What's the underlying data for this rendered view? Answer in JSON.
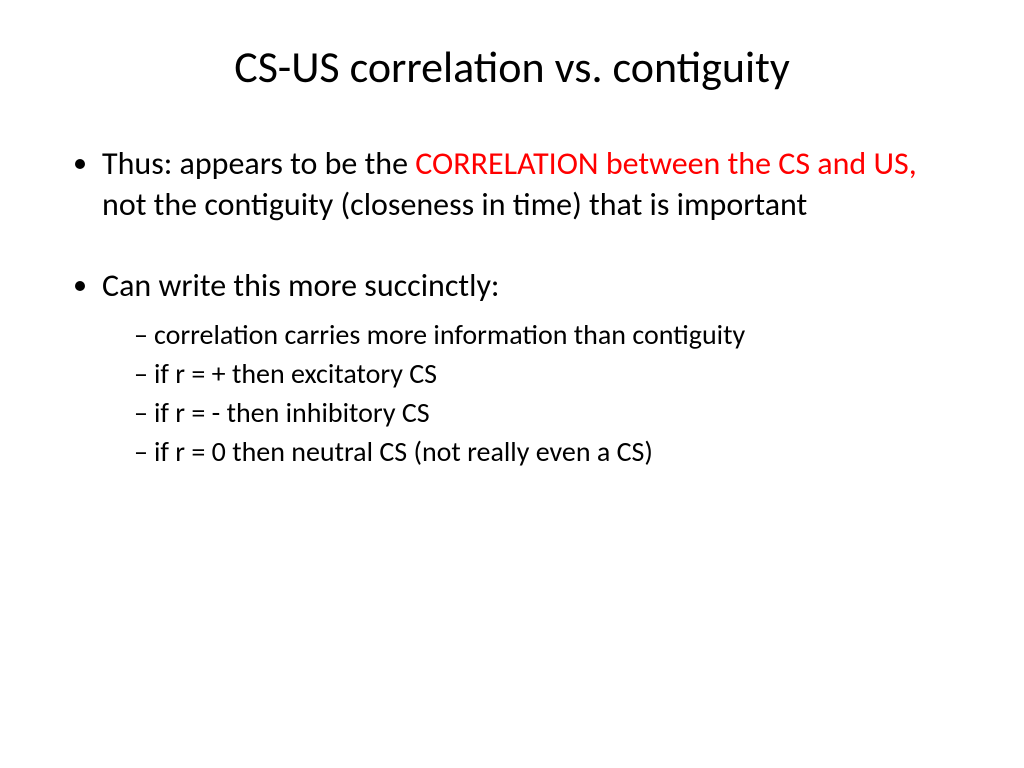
{
  "title": {
    "text": "CS-US correlation vs. contiguity",
    "fontsize": 44,
    "color": "#000000"
  },
  "bullets": {
    "level1_fontsize": 32,
    "level2_fontsize": 28,
    "text_color": "#000000",
    "highlight_color": "#ff0000",
    "item1": {
      "part1": "Thus: appears to be the ",
      "highlight": "CORRELATION between the CS and US,",
      "part2": " not the contiguity (closeness in time) that is important"
    },
    "item2": {
      "text": "Can write this more succinctly:",
      "sub1": "correlation carries more information than contiguity",
      "sub2": "if r = + then excitatory CS",
      "sub3": "if r = - then inhibitory CS",
      "sub4": "if r = 0 then neutral CS (not really even a CS)"
    }
  },
  "background_color": "#ffffff"
}
